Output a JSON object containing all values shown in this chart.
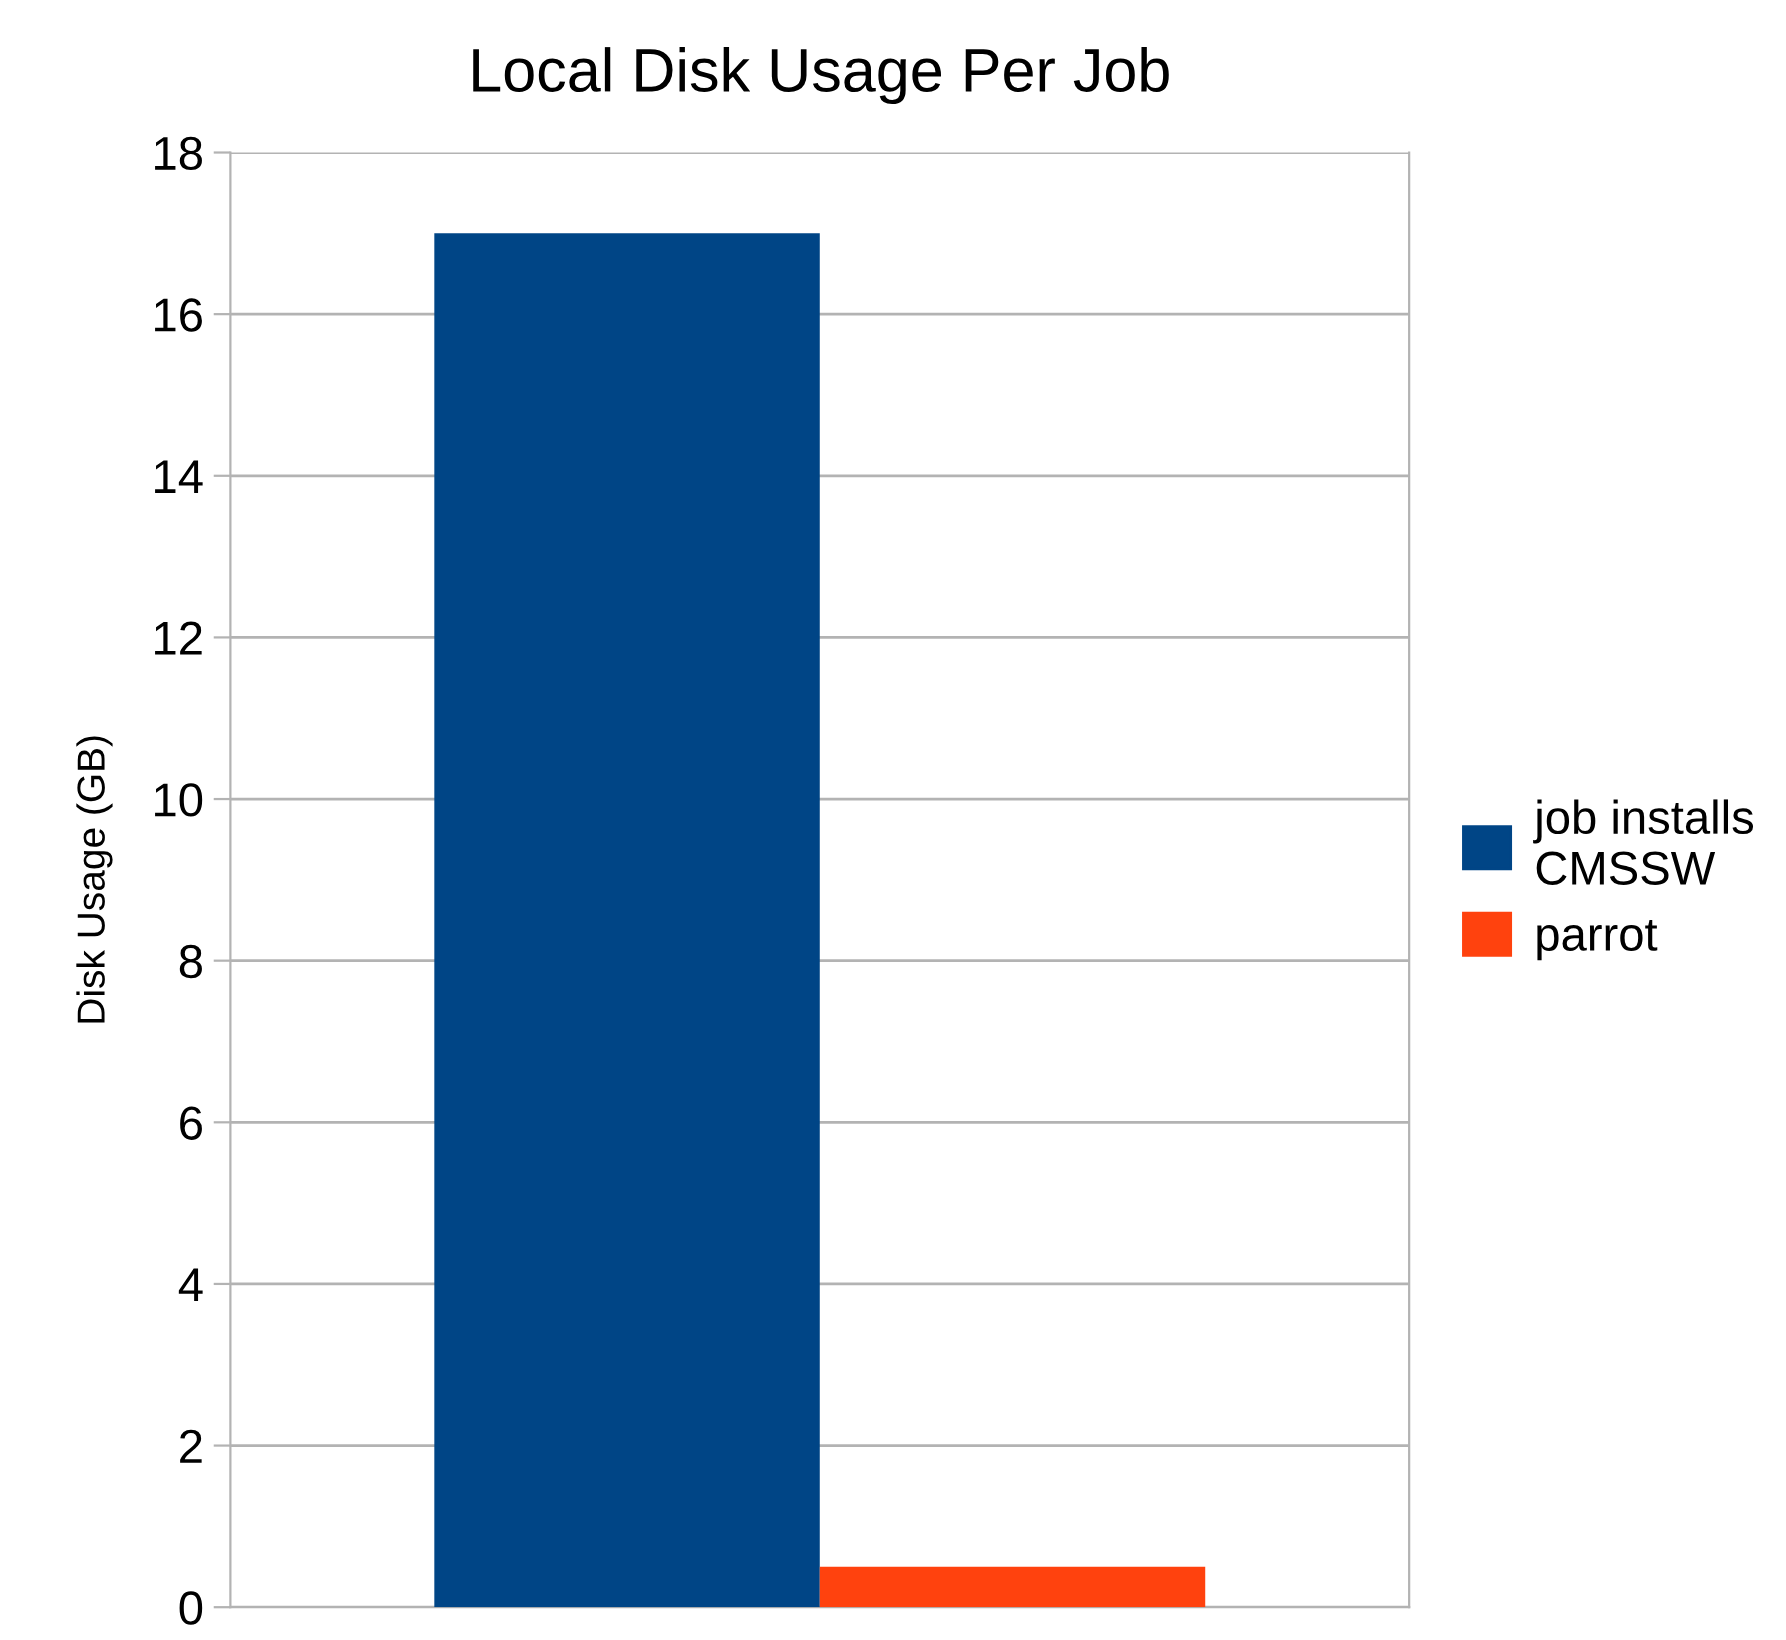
{
  "chart_data": {
    "type": "bar",
    "title": "Local Disk Usage Per Job",
    "ylabel": "Disk Usage (GB)",
    "categories": [
      null
    ],
    "series": [
      {
        "name": "job installs\nCMSSW",
        "color": "#004586",
        "values": [
          17
        ]
      },
      {
        "name": "parrot",
        "color": "#ff420e",
        "values": [
          0.5
        ]
      }
    ],
    "ylim": [
      0,
      18
    ],
    "yticks": [
      0,
      2,
      4,
      6,
      8,
      10,
      12,
      14,
      16,
      18
    ],
    "grid": "y",
    "legend": "right"
  }
}
